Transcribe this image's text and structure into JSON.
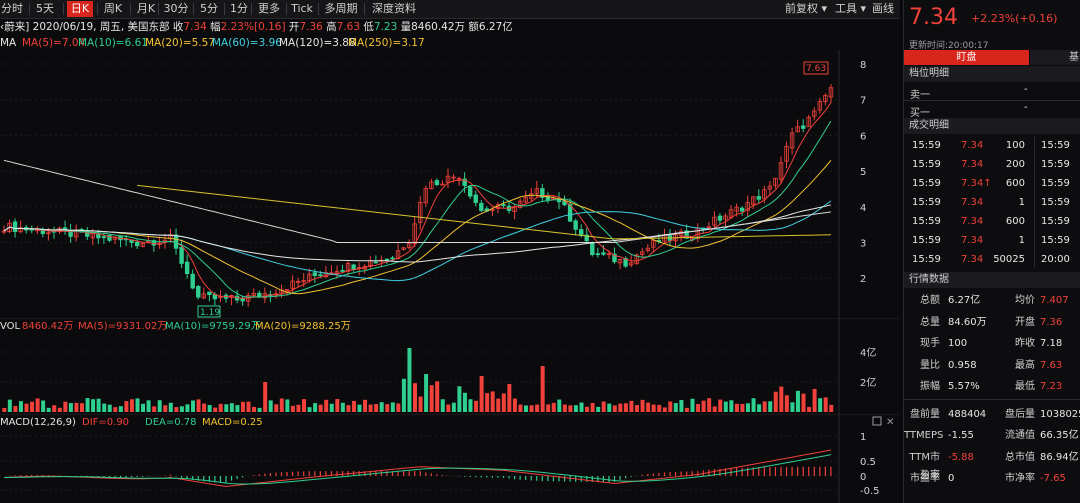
{
  "toolbar": {
    "tabs": [
      "分时",
      "5天",
      "日K",
      "周K",
      "月K",
      "30分",
      "5分",
      "1分",
      "更多",
      "Tick",
      "多周期",
      "深度资料"
    ],
    "active": "日K",
    "right": [
      "前复权",
      "工具",
      "画线"
    ]
  },
  "info": {
    "name": "蔚来",
    "date": "2020/06/19, 周五, 美国东部",
    "close_label": "收",
    "close": "7.34",
    "chg_label": "幅",
    "chg": "2.23%",
    "chg_abs": "0.16",
    "open_label": "开",
    "open": "7.36",
    "high_label": "高",
    "high": "7.63",
    "low_label": "低",
    "low": "7.23",
    "vol_label": "量",
    "vol": "8460.42万",
    "amt_label": "额",
    "amt": "6.27亿"
  },
  "ma": {
    "label": "MA",
    "items": [
      {
        "text": "MA(5)=7.04",
        "color": "#f0413a"
      },
      {
        "text": "MA(10)=6.61",
        "color": "#2fcf8f"
      },
      {
        "text": "MA(20)=5.57",
        "color": "#f2c230"
      },
      {
        "text": "MA(60)=3.96",
        "color": "#3fd0e0"
      },
      {
        "text": "MA(120)=3.88",
        "color": "#e6e6e6"
      },
      {
        "text": "MA(250)=3.17",
        "color": "#f2c230"
      }
    ]
  },
  "price_axis": [
    "8",
    "7",
    "6",
    "5",
    "4",
    "3",
    "2"
  ],
  "markers": {
    "high": "7.63",
    "low": "1.19"
  },
  "vol": {
    "label": "VOL",
    "items": [
      {
        "text": "8460.42万",
        "color": "#f0413a"
      },
      {
        "text": "MA(5)=9331.02万",
        "color": "#f0413a"
      },
      {
        "text": "MA(10)=9759.29万",
        "color": "#2fcf8f"
      },
      {
        "text": "MA(20)=9288.25万",
        "color": "#f2c230"
      }
    ],
    "axis": [
      "4亿",
      "2亿"
    ]
  },
  "macd": {
    "label": "MACD(12,26,9)",
    "items": [
      {
        "text": "DIF=0.90",
        "color": "#f0413a"
      },
      {
        "text": "DEA=0.78",
        "color": "#2fcf8f"
      },
      {
        "text": "MACD=0.25",
        "color": "#f2c230"
      }
    ],
    "axis": [
      "1",
      "0.5",
      "0",
      "-0.5"
    ]
  },
  "quote": {
    "price": "7.34",
    "change": "+2.23%(+0.16)",
    "update": "更新时间:20:00:17",
    "tabs": [
      "盯盘",
      "基"
    ],
    "section_book": "档位明细",
    "sell1": "卖一",
    "buy1": "买一",
    "dash": "-",
    "section_trades": "成交明细",
    "trades": [
      {
        "t": "15:59",
        "p": "7.34",
        "v": "100",
        "t2": "15:59",
        "up": false
      },
      {
        "t": "15:59",
        "p": "7.34",
        "v": "200",
        "t2": "15:59",
        "up": false
      },
      {
        "t": "15:59",
        "p": "7.34",
        "v": "600",
        "t2": "15:59",
        "up": true
      },
      {
        "t": "15:59",
        "p": "7.34",
        "v": "1",
        "t2": "15:59",
        "up": false
      },
      {
        "t": "15:59",
        "p": "7.34",
        "v": "600",
        "t2": "15:59",
        "up": false
      },
      {
        "t": "15:59",
        "p": "7.34",
        "v": "1",
        "t2": "15:59",
        "up": false
      },
      {
        "t": "15:59",
        "p": "7.34",
        "v": "50025",
        "t2": "20:00",
        "up": false
      }
    ],
    "section_stats": "行情数据",
    "stats": [
      {
        "k1": "总额",
        "v1": "6.27亿",
        "c1": "#e6e6e6",
        "k2": "均价",
        "v2": "7.407",
        "c2": "#f0413a"
      },
      {
        "k1": "总量",
        "v1": "84.60万",
        "c1": "#e6e6e6",
        "k2": "开盘",
        "v2": "7.36",
        "c2": "#f0413a"
      },
      {
        "k1": "现手",
        "v1": "100",
        "c1": "#e6e6e6",
        "k2": "昨收",
        "v2": "7.18",
        "c2": "#e6e6e6"
      },
      {
        "k1": "量比",
        "v1": "0.958",
        "c1": "#e6e6e6",
        "k2": "最高",
        "v2": "7.63",
        "c2": "#f0413a"
      },
      {
        "k1": "振幅",
        "v1": "5.57%",
        "c1": "#e6e6e6",
        "k2": "最低",
        "v2": "7.23",
        "c2": "#f0413a"
      }
    ],
    "stats2": [
      {
        "k1": "盘前量",
        "v1": "488404",
        "c1": "#e6e6e6",
        "k2": "盘后量",
        "v2": "1038025",
        "c2": "#e6e6e6"
      },
      {
        "k1": "TTMEPS",
        "v1": "-1.55",
        "c1": "#e6e6e6",
        "k2": "流通值",
        "v2": "66.35亿",
        "c2": "#e6e6e6"
      },
      {
        "k1": "TTM市盈率",
        "v1": "-5.88",
        "c1": "#f0413a",
        "k2": "总市值",
        "v2": "86.94亿",
        "c2": "#e6e6e6"
      },
      {
        "k1": "市盈率",
        "v1": "0",
        "c1": "#e6e6e6",
        "k2": "市净率",
        "v2": "-7.65",
        "c2": "#f0413a"
      }
    ]
  }
}
